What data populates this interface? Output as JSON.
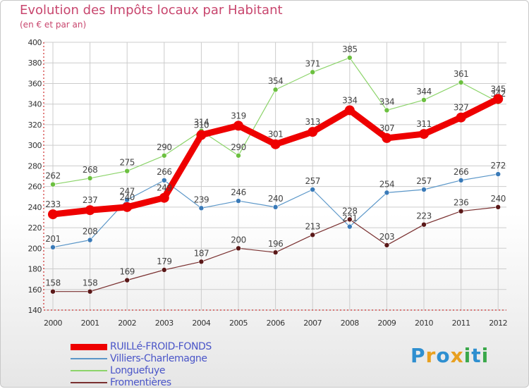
{
  "header": {
    "title": "Evolution des Impôts locaux par Habitant",
    "subtitle": "(en € et par an)"
  },
  "colors": {
    "title": "#c8466e",
    "axis": "#c40000",
    "grid": "#cccccc",
    "tick_text": "#333333",
    "legend_text": "#4a55c8"
  },
  "logo": {
    "text": "Proxiti",
    "colors": [
      "#2e8fd0",
      "#e8a020",
      "#2e8fd0",
      "#e8a020",
      "#3aa84a",
      "#2e8fd0",
      "#3aa84a"
    ]
  },
  "chart_data": {
    "type": "line",
    "title": "Evolution des Impôts locaux par Habitant",
    "subtitle": "(en € et par an)",
    "xlabel": "",
    "ylabel": "",
    "ylim": [
      140,
      400
    ],
    "yticks": [
      140,
      160,
      180,
      200,
      220,
      240,
      260,
      280,
      300,
      320,
      340,
      360,
      380,
      400
    ],
    "grid": true,
    "legend_position": "bottom-left",
    "x": [
      "2000",
      "2001",
      "2002",
      "2003",
      "2004",
      "2005",
      "2006",
      "2007",
      "2008",
      "2009",
      "2010",
      "2011",
      "2012"
    ],
    "series": [
      {
        "name": "Villiers-Charlemagne",
        "color": "#5a96c8",
        "marker": "#3a7ab8",
        "weight": "thin",
        "values": [
          201,
          208,
          247,
          266,
          239,
          246,
          240,
          257,
          221,
          254,
          257,
          266,
          272
        ]
      },
      {
        "name": "Longuefuye",
        "color": "#8cd46a",
        "marker": "#6cc040",
        "weight": "thin",
        "values": [
          262,
          268,
          275,
          290,
          314,
          290,
          354,
          371,
          385,
          334,
          344,
          361,
          342
        ]
      },
      {
        "name": "Fromentières",
        "color": "#7a3030",
        "marker": "#5a1818",
        "weight": "thin",
        "values": [
          158,
          158,
          169,
          179,
          187,
          200,
          196,
          213,
          228,
          203,
          223,
          236,
          240
        ]
      },
      {
        "name": "RUILLé-FROID-FONDS",
        "color": "#ee0000",
        "marker": "#ee0000",
        "weight": "thick",
        "values": [
          233,
          237,
          240,
          249,
          310,
          319,
          301,
          313,
          334,
          307,
          311,
          327,
          345
        ]
      }
    ]
  },
  "legend": [
    {
      "label": "RUILLé-FROID-FONDS",
      "color": "#ee0000",
      "thickness": 9
    },
    {
      "label": "Villiers-Charlemagne",
      "color": "#5a96c8",
      "thickness": 2
    },
    {
      "label": "Longuefuye",
      "color": "#8cd46a",
      "thickness": 2
    },
    {
      "label": "Fromentières",
      "color": "#7a3030",
      "thickness": 2
    }
  ]
}
